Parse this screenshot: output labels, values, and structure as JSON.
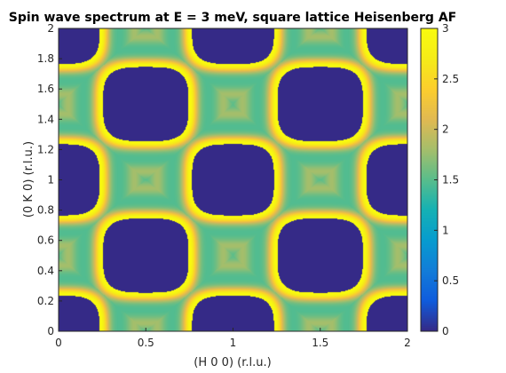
{
  "chart_data": {
    "type": "heatmap",
    "title": "Spin wave spectrum at E = 3 meV, square lattice Heisenberg AF",
    "xlabel": "(H 0 0) (r.l.u.)",
    "ylabel": "(0 K 0) (r.l.u.)",
    "xlim": [
      0,
      2
    ],
    "ylim": [
      0,
      2
    ],
    "xticks": [
      "0",
      "0.5",
      "1",
      "1.5",
      "2"
    ],
    "yticks": [
      "0",
      "0.2",
      "0.4",
      "0.6",
      "0.8",
      "1",
      "1.2",
      "1.4",
      "1.6",
      "1.8",
      "2"
    ],
    "colorbar": {
      "clim": [
        0,
        3
      ],
      "ticks": [
        "0",
        "0.5",
        "1",
        "1.5",
        "2",
        "2.5",
        "3"
      ],
      "colormap": "parula"
    },
    "model": {
      "energy_meV": 3,
      "zone_centers": [
        [
          0.5,
          0.5
        ],
        [
          1.5,
          0.5
        ],
        [
          0.5,
          1.5
        ],
        [
          1.5,
          1.5
        ],
        [
          0,
          0
        ],
        [
          1,
          0
        ],
        [
          2,
          0
        ],
        [
          0,
          1
        ],
        [
          1,
          1
        ],
        [
          2,
          1
        ],
        [
          0,
          2
        ],
        [
          1,
          2
        ],
        [
          2,
          2
        ]
      ],
      "description": "Intensity peaks (~3) on rounded-square rings around zone centers, background ~1.3-1.7, inside rings 0"
    },
    "grid": false
  }
}
